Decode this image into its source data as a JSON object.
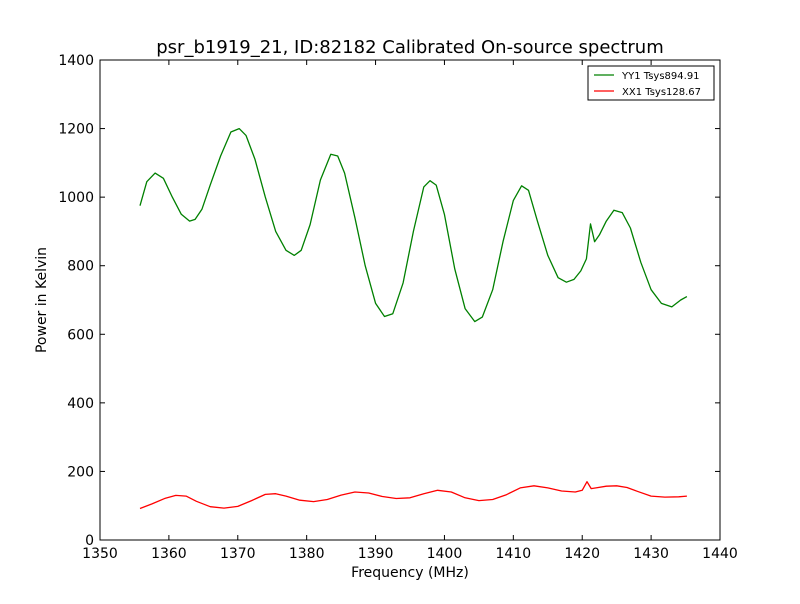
{
  "chart_data": {
    "type": "line",
    "title": "psr_b1919_21, ID:82182 Calibrated On-source spectrum",
    "xlabel": "Frequency (MHz)",
    "ylabel": "Power in Kelvin",
    "xlim": [
      1350,
      1440
    ],
    "ylim": [
      0,
      1400
    ],
    "xticks": [
      1350,
      1360,
      1370,
      1380,
      1390,
      1400,
      1410,
      1420,
      1430,
      1440
    ],
    "yticks": [
      0,
      200,
      400,
      600,
      800,
      1000,
      1200,
      1400
    ],
    "grid": false,
    "legend_position": "top-right",
    "series": [
      {
        "name": "YY1 Tsys894.91",
        "color": "#008000",
        "x": [
          1355.8,
          1356.8,
          1358.0,
          1359.2,
          1360.5,
          1361.8,
          1363.0,
          1363.8,
          1364.8,
          1366.0,
          1367.5,
          1369.0,
          1370.2,
          1371.2,
          1372.5,
          1374.0,
          1375.5,
          1377.0,
          1378.2,
          1379.2,
          1380.5,
          1382.0,
          1383.5,
          1384.5,
          1385.5,
          1387.0,
          1388.5,
          1390.0,
          1391.3,
          1392.5,
          1394.0,
          1395.5,
          1397.0,
          1397.9,
          1398.8,
          1400.0,
          1401.5,
          1403.0,
          1404.4,
          1405.5,
          1407.0,
          1408.5,
          1410.0,
          1411.2,
          1412.2,
          1413.5,
          1415.0,
          1416.5,
          1417.7,
          1418.8,
          1419.8,
          1420.6,
          1421.2,
          1421.8,
          1422.5,
          1423.5,
          1424.6,
          1425.8,
          1427.0,
          1428.5,
          1430.0,
          1431.5,
          1433.0,
          1434.3,
          1435.2
        ],
        "y": [
          975,
          1045,
          1070,
          1055,
          1000,
          950,
          930,
          935,
          965,
          1035,
          1120,
          1190,
          1200,
          1180,
          1110,
          1000,
          900,
          845,
          830,
          845,
          920,
          1050,
          1125,
          1120,
          1070,
          940,
          800,
          690,
          652,
          660,
          750,
          900,
          1030,
          1048,
          1035,
          950,
          790,
          675,
          637,
          650,
          730,
          870,
          990,
          1033,
          1020,
          930,
          830,
          765,
          752,
          760,
          785,
          820,
          922,
          870,
          890,
          930,
          962,
          955,
          910,
          810,
          730,
          690,
          680,
          700,
          710
        ]
      },
      {
        "name": "XX1 Tsys128.67",
        "color": "#ff0000",
        "x": [
          1355.8,
          1357.5,
          1359.5,
          1361.0,
          1362.5,
          1364.0,
          1366.0,
          1368.0,
          1370.0,
          1372.0,
          1374.0,
          1375.5,
          1377.0,
          1379.0,
          1381.0,
          1383.0,
          1385.0,
          1387.0,
          1389.0,
          1391.0,
          1393.0,
          1395.0,
          1397.0,
          1399.0,
          1401.0,
          1403.0,
          1405.0,
          1407.0,
          1409.0,
          1411.0,
          1413.0,
          1415.0,
          1417.0,
          1419.0,
          1420.0,
          1420.7,
          1421.3,
          1422.0,
          1423.5,
          1425.0,
          1426.5,
          1428.0,
          1430.0,
          1432.0,
          1434.0,
          1435.2
        ],
        "y": [
          92,
          105,
          122,
          130,
          128,
          113,
          97,
          93,
          98,
          115,
          133,
          135,
          128,
          116,
          112,
          118,
          131,
          140,
          137,
          127,
          121,
          123,
          135,
          145,
          140,
          123,
          115,
          118,
          132,
          152,
          158,
          152,
          143,
          140,
          145,
          170,
          150,
          152,
          157,
          158,
          153,
          142,
          128,
          125,
          126,
          128
        ]
      }
    ]
  }
}
